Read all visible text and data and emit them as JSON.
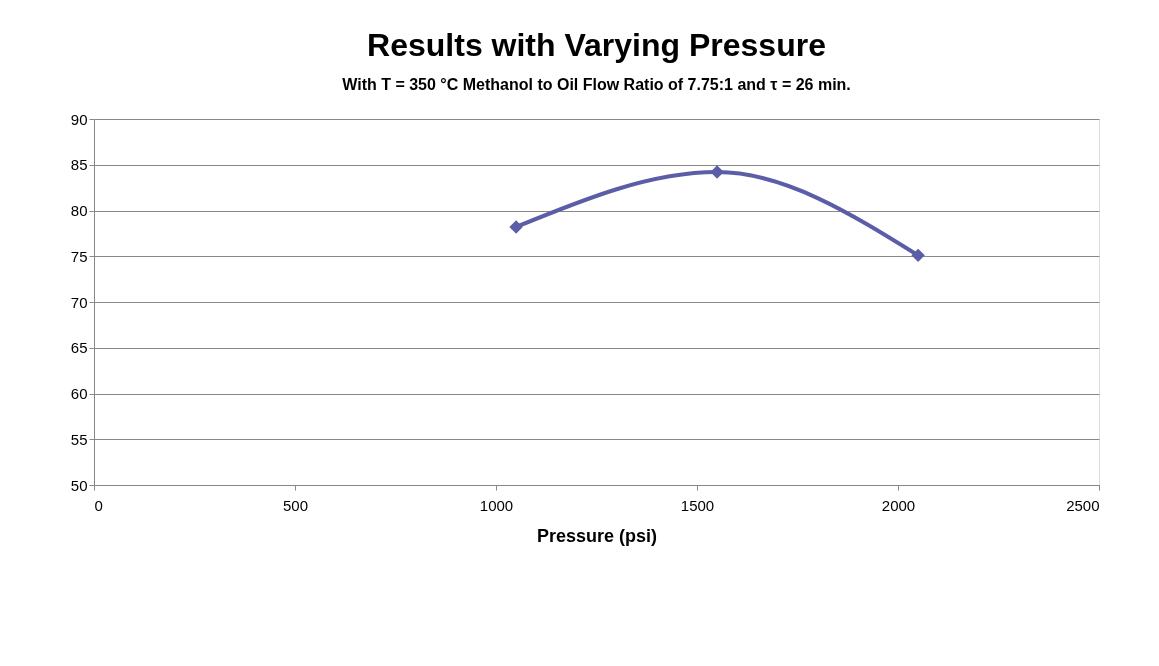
{
  "chart_data": {
    "type": "line",
    "title": "Results with Varying Pressure",
    "subtitle": "With T = 350 °C  Methanol to Oil Flow Ratio of 7.75:1 and τ = 26 min.",
    "xlabel": "Pressure  (psi)",
    "x": [
      1050,
      1550,
      2050
    ],
    "series": [
      {
        "color": "#5b5ea6",
        "values": [
          78.2,
          84.2,
          75.1
        ]
      }
    ],
    "xlim": [
      0,
      2500
    ],
    "xticks": [
      0,
      500,
      1000,
      1500,
      2000,
      2500
    ],
    "ylim": [
      50,
      90
    ],
    "yticks": [
      50,
      55,
      60,
      65,
      70,
      75,
      80,
      85,
      90
    ],
    "grid": "y",
    "marker": "diamond",
    "line_style": "solid"
  }
}
